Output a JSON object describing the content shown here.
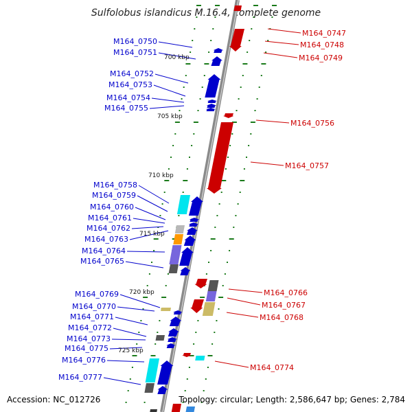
{
  "title": "Sulfolobus islandicus M.16.4, complete genome",
  "accession": "Accession: NC_012726",
  "topology": "Topology: circular; Length: 2,586,647 bp; Genes: 2,784",
  "ruler": [
    "700 kbp",
    "705 kbp",
    "710 kbp",
    "715 kbp",
    "720 kbp",
    "725 kbp"
  ],
  "colors": {
    "forward": "#0000cc",
    "reverse": "#cc0000",
    "backbone": "#8a8a8a",
    "tick": "#1a7a1a",
    "cyan": "#00e5ee",
    "silver": "#b8b8b8",
    "orange": "#ff9900",
    "slate": "#7766dd",
    "dark": "#555555",
    "khaki": "#ccbb66"
  },
  "genes_left": [
    "M164_0750",
    "M164_0751",
    "M164_0752",
    "M164_0753",
    "M164_0754",
    "M164_0755",
    "M164_0758",
    "M164_0759",
    "M164_0760",
    "M164_0761",
    "M164_0762",
    "M164_0763",
    "M164_0764",
    "M164_0765",
    "M164_0769",
    "M164_0770",
    "M164_0771",
    "M164_0772",
    "M164_0773",
    "M164_0775",
    "M164_0776",
    "M164_0777"
  ],
  "genes_right": [
    "M164_0747",
    "M164_0748",
    "M164_0749",
    "M164_0756",
    "M164_0757",
    "M164_0766",
    "M164_0767",
    "M164_0768",
    "M164_0774"
  ]
}
